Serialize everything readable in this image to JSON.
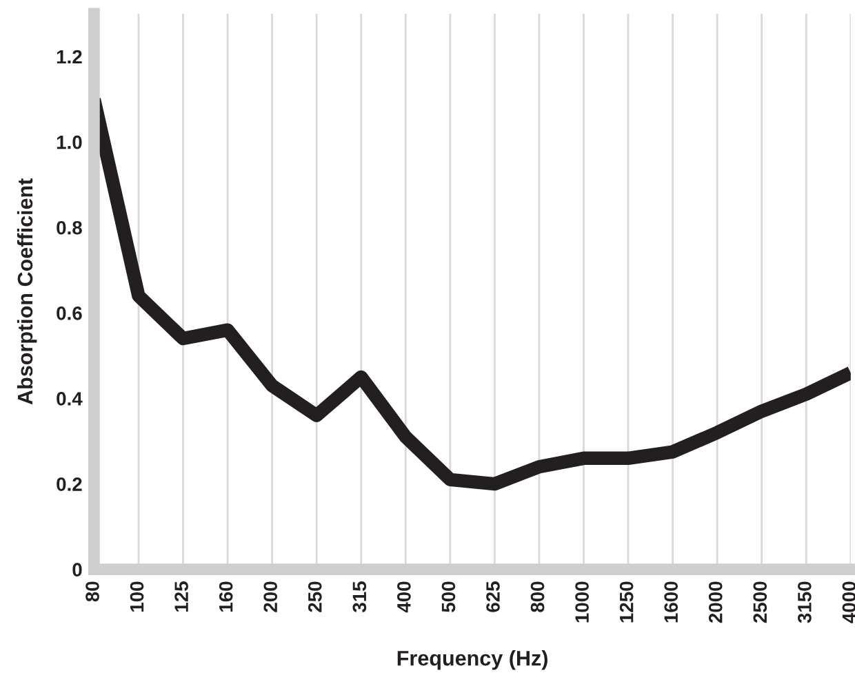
{
  "chart_data": {
    "type": "line",
    "xlabel": "Frequency (Hz)",
    "ylabel": "Absorption Coefficient",
    "categories": [
      "80",
      "100",
      "125",
      "160",
      "200",
      "250",
      "315",
      "400",
      "500",
      "625",
      "800",
      "1000",
      "1250",
      "1600",
      "2000",
      "2500",
      "3150",
      "4000"
    ],
    "series": [
      {
        "color": "#231f20",
        "values": [
          1.1,
          0.64,
          0.54,
          0.56,
          0.43,
          0.36,
          0.45,
          0.31,
          0.21,
          0.2,
          0.24,
          0.26,
          0.26,
          0.275,
          0.32,
          0.37,
          0.41,
          0.46
        ]
      }
    ],
    "ylim": [
      0,
      1.3
    ],
    "yticks": [
      0,
      0.2,
      0.4,
      0.6,
      0.8,
      {
        "value": 1.0,
        "label": "1.0"
      },
      1.2
    ],
    "grid": "x",
    "marker": "none",
    "line_style": "solid"
  }
}
